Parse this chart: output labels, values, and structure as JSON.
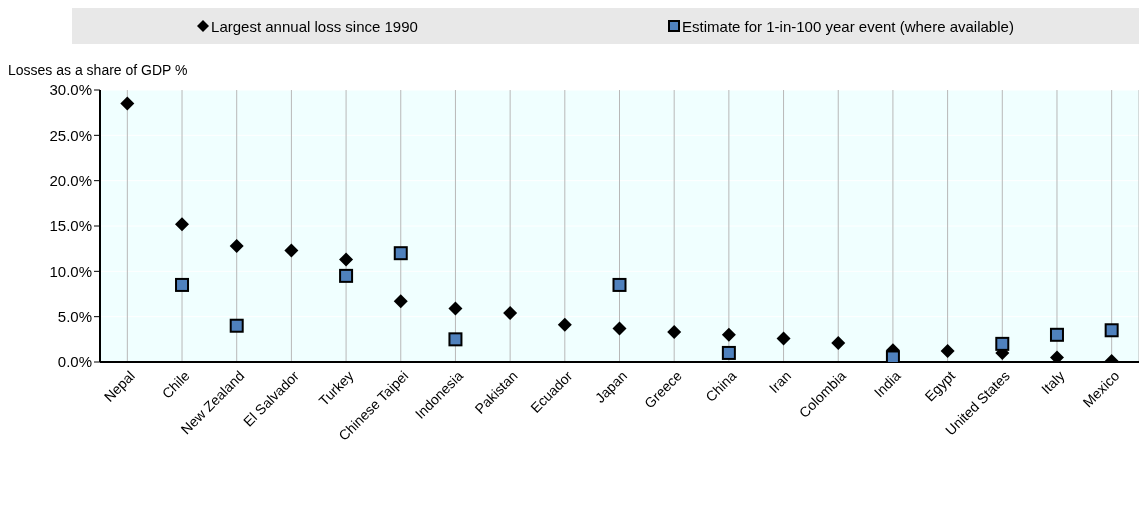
{
  "chart_data": {
    "type": "scatter",
    "ylabel": "Losses as a share of GDP %",
    "categories": [
      "Nepal",
      "Chile",
      "New Zealand",
      "El Salvador",
      "Turkey",
      "Chinese Taipei",
      "Indonesia",
      "Pakistan",
      "Ecuador",
      "Japan",
      "Greece",
      "China",
      "Iran",
      "Colombia",
      "India",
      "Egypt",
      "United States",
      "Italy",
      "Mexico"
    ],
    "series": [
      {
        "name": "Largest annual loss since 1990",
        "color": "#000000",
        "marker": "diamond",
        "values": [
          28.5,
          15.2,
          12.8,
          12.3,
          11.3,
          6.7,
          5.9,
          5.4,
          4.1,
          3.7,
          3.3,
          3.0,
          2.6,
          2.1,
          1.3,
          1.2,
          1.0,
          0.5,
          0.1
        ]
      },
      {
        "name": "Estimate for 1-in-100 year event (where available)",
        "color": "#4f81bd",
        "marker": "square",
        "values": [
          null,
          8.5,
          4.0,
          null,
          9.5,
          12.0,
          2.5,
          null,
          null,
          8.5,
          null,
          1.0,
          null,
          null,
          0.5,
          null,
          2.0,
          3.0,
          3.5
        ]
      }
    ],
    "ylim": [
      0,
      30
    ],
    "yticks": [
      {
        "value": 0,
        "label": "0.0%"
      },
      {
        "value": 5,
        "label": "5.0%"
      },
      {
        "value": 10,
        "label": "10.0%"
      },
      {
        "value": 15,
        "label": "15.0%"
      },
      {
        "value": 20,
        "label": "20.0%"
      },
      {
        "value": 25,
        "label": "25.0%"
      },
      {
        "value": 30,
        "label": "30.0%"
      }
    ],
    "grid": true,
    "legend": "top"
  }
}
